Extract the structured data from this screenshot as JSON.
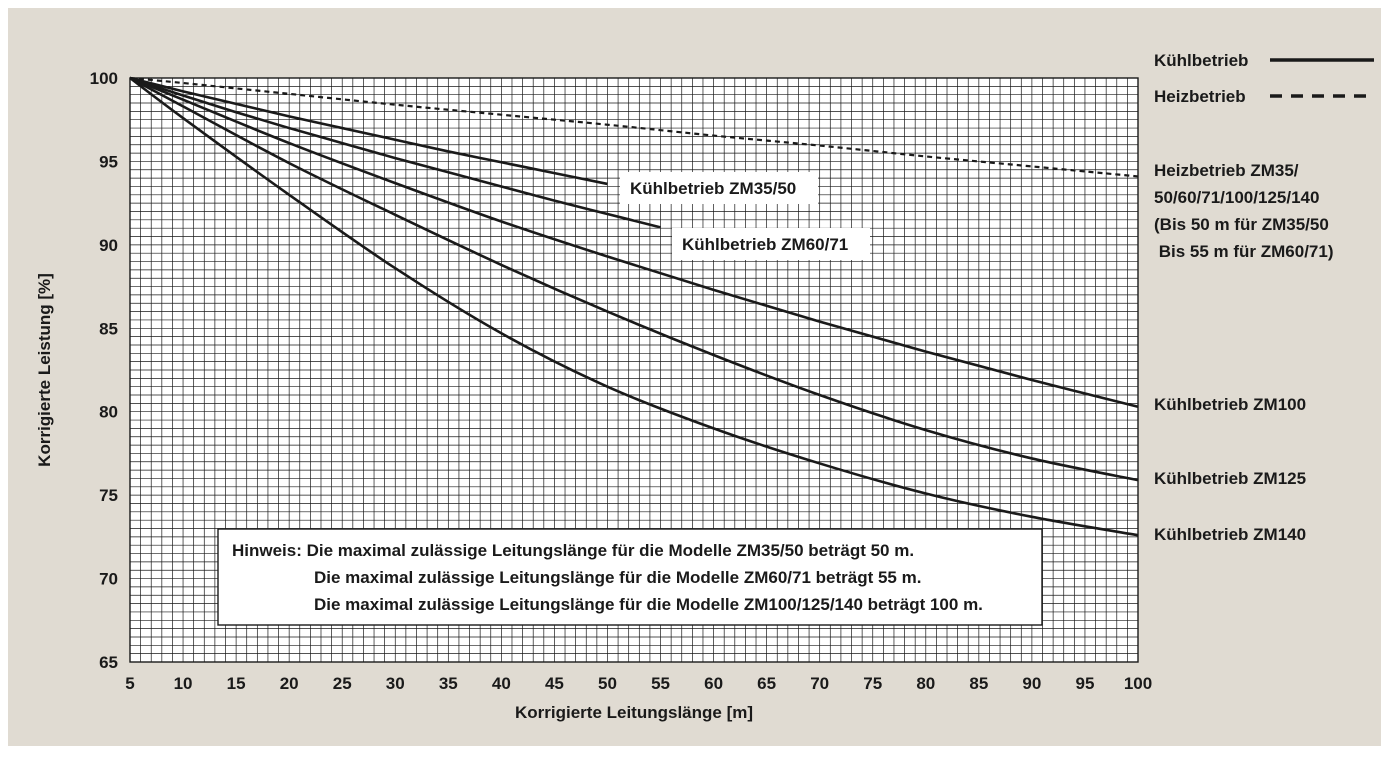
{
  "chart_data": {
    "type": "line",
    "xlabel": "Korrigierte Leitungslänge [m]",
    "ylabel": "Korrigierte Leistung [%]",
    "xlim": [
      5,
      100
    ],
    "ylim": [
      65,
      100
    ],
    "x_ticks": [
      "5",
      "10",
      "15",
      "20",
      "25",
      "30",
      "35",
      "40",
      "45",
      "50",
      "55",
      "60",
      "65",
      "70",
      "75",
      "80",
      "85",
      "90",
      "95",
      "100"
    ],
    "y_ticks": [
      "65",
      "70",
      "75",
      "80",
      "85",
      "90",
      "95",
      "100"
    ],
    "grid": true,
    "legend": [
      {
        "label": "Kühlbetrieb",
        "style": "solid"
      },
      {
        "label": "Heizbetrieb",
        "style": "dashed"
      }
    ],
    "series": [
      {
        "name": "Heizbetrieb ZM35/50/60/71/100/125/140",
        "label_lines": [
          "Heizbetrieb ZM35/",
          "50/60/71/100/125/140",
          "(Bis 50 m für ZM35/50",
          " Bis 55 m für ZM60/71)"
        ],
        "label_placement": "right",
        "style": "dashed",
        "x": [
          5,
          10,
          20,
          30,
          40,
          50,
          60,
          70,
          80,
          90,
          100
        ],
        "y": [
          100,
          99.7,
          99.05,
          98.4,
          97.8,
          97.2,
          96.55,
          95.95,
          95.3,
          94.7,
          94.1
        ]
      },
      {
        "name": "Kühlbetrieb ZM35/50",
        "label_lines": [
          "Kühlbetrieb ZM35/50"
        ],
        "label_placement": "boxed",
        "style": "solid",
        "x": [
          5,
          10,
          15,
          20,
          25,
          30,
          35,
          40,
          45,
          50
        ],
        "y": [
          100,
          99.2,
          98.45,
          97.7,
          97.0,
          96.3,
          95.6,
          94.95,
          94.3,
          93.65
        ]
      },
      {
        "name": "Kühlbetrieb ZM60/71",
        "label_lines": [
          "Kühlbetrieb ZM60/71"
        ],
        "label_placement": "boxed",
        "style": "solid",
        "x": [
          5,
          10,
          15,
          20,
          25,
          30,
          35,
          40,
          45,
          50,
          55
        ],
        "y": [
          100,
          98.95,
          97.95,
          97.0,
          96.1,
          95.2,
          94.35,
          93.5,
          92.65,
          91.85,
          91.05
        ]
      },
      {
        "name": "Kühlbetrieb ZM100",
        "label_lines": [
          "Kühlbetrieb ZM100"
        ],
        "label_placement": "right",
        "style": "solid",
        "x": [
          5,
          10,
          20,
          30,
          40,
          50,
          60,
          70,
          80,
          90,
          100
        ],
        "y": [
          100,
          98.7,
          96.1,
          93.7,
          91.4,
          89.3,
          87.3,
          85.4,
          83.6,
          81.9,
          80.3
        ]
      },
      {
        "name": "Kühlbetrieb ZM125",
        "label_lines": [
          "Kühlbetrieb ZM125"
        ],
        "label_placement": "right",
        "style": "solid",
        "x": [
          5,
          10,
          20,
          30,
          40,
          50,
          60,
          70,
          80,
          90,
          100
        ],
        "y": [
          100,
          98.3,
          94.9,
          91.8,
          88.8,
          86.0,
          83.4,
          81.0,
          78.9,
          77.2,
          75.9
        ]
      },
      {
        "name": "Kühlbetrieb ZM140",
        "label_lines": [
          "Kühlbetrieb ZM140"
        ],
        "label_placement": "right",
        "style": "solid",
        "x": [
          5,
          10,
          20,
          30,
          40,
          50,
          60,
          70,
          80,
          90,
          100
        ],
        "y": [
          100,
          97.6,
          93.0,
          88.6,
          84.7,
          81.5,
          79.0,
          76.9,
          75.1,
          73.7,
          72.6
        ]
      }
    ],
    "note": {
      "lines": [
        "Hinweis: Die maximal zulässige Leitungslänge für die Modelle ZM35/50 beträgt 50 m.",
        "Die maximal zulässige Leitungslänge für die Modelle ZM60/71 beträgt 55 m.",
        "Die maximal zulässige Leitungslänge für die Modelle ZM100/125/140 beträgt 100 m."
      ]
    }
  },
  "colors": {
    "background": "#e0dbd2",
    "plot_background": "#ffffff",
    "grid": "#1a1a1a",
    "line": "#1a1a1a"
  }
}
